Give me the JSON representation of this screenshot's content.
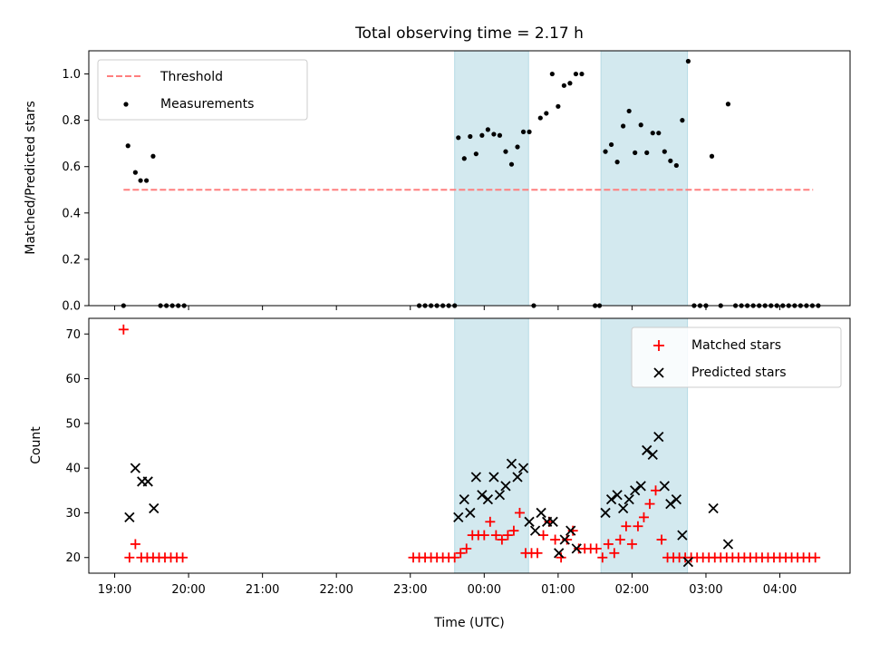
{
  "chart_data": {
    "title": "Total observing time = 2.17 h",
    "xlabel": "Time (UTC)",
    "x_unit": "hours after 19:00 UTC",
    "xlim": [
      -0.35,
      9.95
    ],
    "x_ticks": [
      {
        "x": 0,
        "label": "19:00"
      },
      {
        "x": 1,
        "label": "20:00"
      },
      {
        "x": 2,
        "label": "21:00"
      },
      {
        "x": 3,
        "label": "22:00"
      },
      {
        "x": 4,
        "label": "23:00"
      },
      {
        "x": 5,
        "label": "00:00"
      },
      {
        "x": 6,
        "label": "01:00"
      },
      {
        "x": 7,
        "label": "02:00"
      },
      {
        "x": 8,
        "label": "03:00"
      },
      {
        "x": 9,
        "label": "04:00"
      }
    ],
    "shaded_intervals": [
      {
        "start": 4.6,
        "end": 5.6
      },
      {
        "start": 6.58,
        "end": 7.75
      }
    ],
    "shade_color": "#d3e9ef",
    "panels": [
      {
        "type": "scatter",
        "ylabel": "Matched/Predicted stars",
        "ylim": [
          0,
          1.1
        ],
        "y_ticks": [
          "0.0",
          "0.2",
          "0.4",
          "0.6",
          "0.8",
          "1.0"
        ],
        "legend": {
          "placement": "top-left",
          "entries": [
            "Threshold",
            "Measurements"
          ]
        },
        "threshold": {
          "name": "Threshold",
          "value": 0.5,
          "x_range": [
            0.12,
            9.45
          ],
          "color": "#ff7f7f"
        },
        "measurements": {
          "name": "Measurements",
          "color": "#000000",
          "points": [
            [
              0.12,
              0.0
            ],
            [
              0.18,
              0.69
            ],
            [
              0.28,
              0.575
            ],
            [
              0.35,
              0.54
            ],
            [
              0.43,
              0.54
            ],
            [
              0.52,
              0.645
            ],
            [
              0.62,
              0.0
            ],
            [
              0.7,
              0.0
            ],
            [
              0.78,
              0.0
            ],
            [
              0.86,
              0.0
            ],
            [
              0.94,
              0.0
            ],
            [
              4.12,
              0.0
            ],
            [
              4.2,
              0.0
            ],
            [
              4.28,
              0.0
            ],
            [
              4.36,
              0.0
            ],
            [
              4.44,
              0.0
            ],
            [
              4.52,
              0.0
            ],
            [
              4.6,
              0.0
            ],
            [
              4.65,
              0.725
            ],
            [
              4.73,
              0.635
            ],
            [
              4.81,
              0.73
            ],
            [
              4.89,
              0.655
            ],
            [
              4.97,
              0.735
            ],
            [
              5.05,
              0.76
            ],
            [
              5.13,
              0.74
            ],
            [
              5.21,
              0.735
            ],
            [
              5.29,
              0.665
            ],
            [
              5.37,
              0.61
            ],
            [
              5.45,
              0.685
            ],
            [
              5.53,
              0.75
            ],
            [
              5.61,
              0.75
            ],
            [
              5.67,
              0.0
            ],
            [
              5.76,
              0.81
            ],
            [
              5.84,
              0.83
            ],
            [
              5.92,
              1.0
            ],
            [
              6.0,
              0.86
            ],
            [
              6.08,
              0.95
            ],
            [
              6.16,
              0.96
            ],
            [
              6.24,
              1.0
            ],
            [
              6.32,
              1.0
            ],
            [
              6.5,
              0.0
            ],
            [
              6.56,
              0.0
            ],
            [
              6.64,
              0.665
            ],
            [
              6.72,
              0.695
            ],
            [
              6.8,
              0.62
            ],
            [
              6.88,
              0.775
            ],
            [
              6.96,
              0.84
            ],
            [
              7.04,
              0.66
            ],
            [
              7.12,
              0.78
            ],
            [
              7.2,
              0.66
            ],
            [
              7.28,
              0.745
            ],
            [
              7.36,
              0.745
            ],
            [
              7.44,
              0.665
            ],
            [
              7.52,
              0.625
            ],
            [
              7.6,
              0.605
            ],
            [
              7.68,
              0.8
            ],
            [
              7.76,
              1.055
            ],
            [
              7.84,
              0.0
            ],
            [
              7.92,
              0.0
            ],
            [
              8.0,
              0.0
            ],
            [
              8.08,
              0.645
            ],
            [
              8.2,
              0.0
            ],
            [
              8.3,
              0.87
            ],
            [
              8.4,
              0.0
            ],
            [
              8.48,
              0.0
            ],
            [
              8.56,
              0.0
            ],
            [
              8.64,
              0.0
            ],
            [
              8.72,
              0.0
            ],
            [
              8.8,
              0.0
            ],
            [
              8.88,
              0.0
            ],
            [
              8.96,
              0.0
            ],
            [
              9.04,
              0.0
            ],
            [
              9.12,
              0.0
            ],
            [
              9.2,
              0.0
            ],
            [
              9.28,
              0.0
            ],
            [
              9.36,
              0.0
            ],
            [
              9.44,
              0.0
            ],
            [
              9.52,
              0.0
            ]
          ]
        }
      },
      {
        "type": "scatter",
        "ylabel": "Count",
        "ylim": [
          16.5,
          73.5
        ],
        "y_ticks": [
          "20",
          "30",
          "40",
          "50",
          "60",
          "70"
        ],
        "legend": {
          "placement": "top-right",
          "entries": [
            "Matched stars",
            "Predicted stars"
          ]
        },
        "series": [
          {
            "name": "Matched stars",
            "marker": "+",
            "color": "#ff0000",
            "points": [
              [
                0.12,
                71
              ],
              [
                0.2,
                20
              ],
              [
                0.28,
                23
              ],
              [
                0.36,
                20
              ],
              [
                0.44,
                20
              ],
              [
                0.52,
                20
              ],
              [
                0.6,
                20
              ],
              [
                0.68,
                20
              ],
              [
                0.76,
                20
              ],
              [
                0.84,
                20
              ],
              [
                0.92,
                20
              ],
              [
                4.04,
                20
              ],
              [
                4.12,
                20
              ],
              [
                4.2,
                20
              ],
              [
                4.28,
                20
              ],
              [
                4.36,
                20
              ],
              [
                4.44,
                20
              ],
              [
                4.52,
                20
              ],
              [
                4.6,
                20
              ],
              [
                4.68,
                21
              ],
              [
                4.76,
                22
              ],
              [
                4.84,
                25
              ],
              [
                4.92,
                25
              ],
              [
                5.0,
                25
              ],
              [
                5.08,
                28
              ],
              [
                5.16,
                25
              ],
              [
                5.24,
                24
              ],
              [
                5.32,
                25
              ],
              [
                5.4,
                26
              ],
              [
                5.48,
                30
              ],
              [
                5.56,
                21
              ],
              [
                5.64,
                21
              ],
              [
                5.72,
                21
              ],
              [
                5.8,
                25
              ],
              [
                5.88,
                28
              ],
              [
                5.96,
                24
              ],
              [
                6.04,
                20
              ],
              [
                6.12,
                24
              ],
              [
                6.2,
                26
              ],
              [
                6.28,
                22
              ],
              [
                6.36,
                22
              ],
              [
                6.44,
                22
              ],
              [
                6.52,
                22
              ],
              [
                6.6,
                20
              ],
              [
                6.68,
                23
              ],
              [
                6.76,
                21
              ],
              [
                6.84,
                24
              ],
              [
                6.92,
                27
              ],
              [
                7.0,
                23
              ],
              [
                7.08,
                27
              ],
              [
                7.16,
                29
              ],
              [
                7.24,
                32
              ],
              [
                7.32,
                35
              ],
              [
                7.4,
                24
              ],
              [
                7.48,
                20
              ],
              [
                7.56,
                20
              ],
              [
                7.64,
                20
              ],
              [
                7.72,
                20
              ],
              [
                7.8,
                20
              ],
              [
                7.88,
                20
              ],
              [
                7.96,
                20
              ],
              [
                8.04,
                20
              ],
              [
                8.12,
                20
              ],
              [
                8.2,
                20
              ],
              [
                8.28,
                20
              ],
              [
                8.36,
                20
              ],
              [
                8.44,
                20
              ],
              [
                8.52,
                20
              ],
              [
                8.6,
                20
              ],
              [
                8.68,
                20
              ],
              [
                8.76,
                20
              ],
              [
                8.84,
                20
              ],
              [
                8.92,
                20
              ],
              [
                9.0,
                20
              ],
              [
                9.08,
                20
              ],
              [
                9.16,
                20
              ],
              [
                9.24,
                20
              ],
              [
                9.32,
                20
              ],
              [
                9.4,
                20
              ],
              [
                9.48,
                20
              ]
            ]
          },
          {
            "name": "Predicted stars",
            "marker": "x",
            "color": "#000000",
            "points": [
              [
                0.2,
                29
              ],
              [
                0.28,
                40
              ],
              [
                0.37,
                37
              ],
              [
                0.45,
                37
              ],
              [
                0.53,
                31
              ],
              [
                4.65,
                29
              ],
              [
                4.73,
                33
              ],
              [
                4.81,
                30
              ],
              [
                4.89,
                38
              ],
              [
                4.97,
                34
              ],
              [
                5.05,
                33
              ],
              [
                5.13,
                38
              ],
              [
                5.21,
                34
              ],
              [
                5.29,
                36
              ],
              [
                5.37,
                41
              ],
              [
                5.45,
                38
              ],
              [
                5.53,
                40
              ],
              [
                5.61,
                28
              ],
              [
                5.69,
                26
              ],
              [
                5.77,
                30
              ],
              [
                5.85,
                28
              ],
              [
                5.93,
                28
              ],
              [
                6.01,
                21
              ],
              [
                6.09,
                24
              ],
              [
                6.17,
                26
              ],
              [
                6.25,
                22
              ],
              [
                6.64,
                30
              ],
              [
                6.72,
                33
              ],
              [
                6.8,
                34
              ],
              [
                6.88,
                31
              ],
              [
                6.96,
                33
              ],
              [
                7.04,
                35
              ],
              [
                7.12,
                36
              ],
              [
                7.2,
                44
              ],
              [
                7.28,
                43
              ],
              [
                7.36,
                47
              ],
              [
                7.44,
                36
              ],
              [
                7.52,
                32
              ],
              [
                7.6,
                33
              ],
              [
                7.68,
                25
              ],
              [
                7.76,
                19
              ],
              [
                8.1,
                31
              ],
              [
                8.3,
                23
              ]
            ]
          }
        ]
      }
    ]
  }
}
